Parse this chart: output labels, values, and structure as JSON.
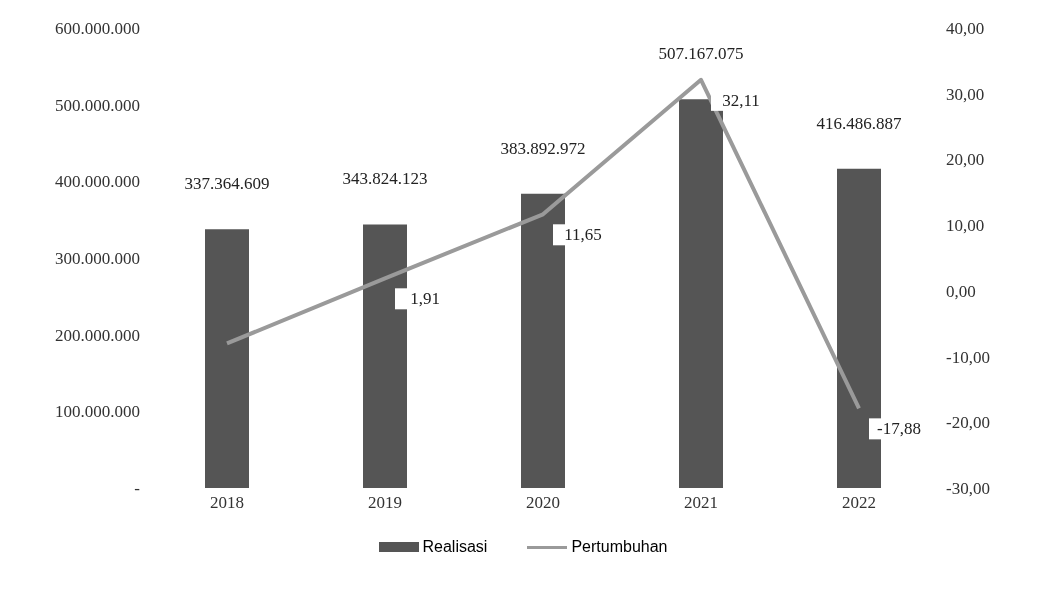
{
  "chart_data": {
    "type": "bar",
    "categories": [
      "2018",
      "2019",
      "2020",
      "2021",
      "2022"
    ],
    "series": [
      {
        "name": "Realisasi",
        "color": "#555555",
        "values": [
          337364609,
          343824123,
          383892972,
          507167075,
          416486887
        ],
        "value_labels": [
          "337.364.609",
          "343.824.123",
          "383.892.972",
          "507.167.075",
          "416.486.887"
        ]
      },
      {
        "name": "Pertumbuhan",
        "type": "line",
        "axis": "y2",
        "color": "#9a9a9a",
        "values": [
          -8,
          1.91,
          11.65,
          32.11,
          -17.88
        ],
        "value_labels": [
          null,
          "1,91",
          "11,65",
          "32,11",
          "-17,88"
        ]
      }
    ],
    "ylim": [
      0,
      600000000
    ],
    "yticks": [
      {
        "value": 0,
        "label": "-"
      },
      {
        "value": 100000000,
        "label": "100.000.000"
      },
      {
        "value": 200000000,
        "label": "200.000.000"
      },
      {
        "value": 300000000,
        "label": "300.000.000"
      },
      {
        "value": 400000000,
        "label": "400.000.000"
      },
      {
        "value": 500000000,
        "label": "500.000.000"
      },
      {
        "value": 600000000,
        "label": "600.000.000"
      }
    ],
    "y2lim": [
      -30,
      40
    ],
    "y2ticks": [
      {
        "value": -30,
        "label": "-30,00"
      },
      {
        "value": -20,
        "label": "-20,00"
      },
      {
        "value": -10,
        "label": "-10,00"
      },
      {
        "value": 0,
        "label": "0,00"
      },
      {
        "value": 10,
        "label": "10,00"
      },
      {
        "value": 20,
        "label": "20,00"
      },
      {
        "value": 30,
        "label": "30,00"
      },
      {
        "value": 40,
        "label": "40,00"
      }
    ],
    "legend": "bottom",
    "marker": "none",
    "line_style": "solid"
  }
}
